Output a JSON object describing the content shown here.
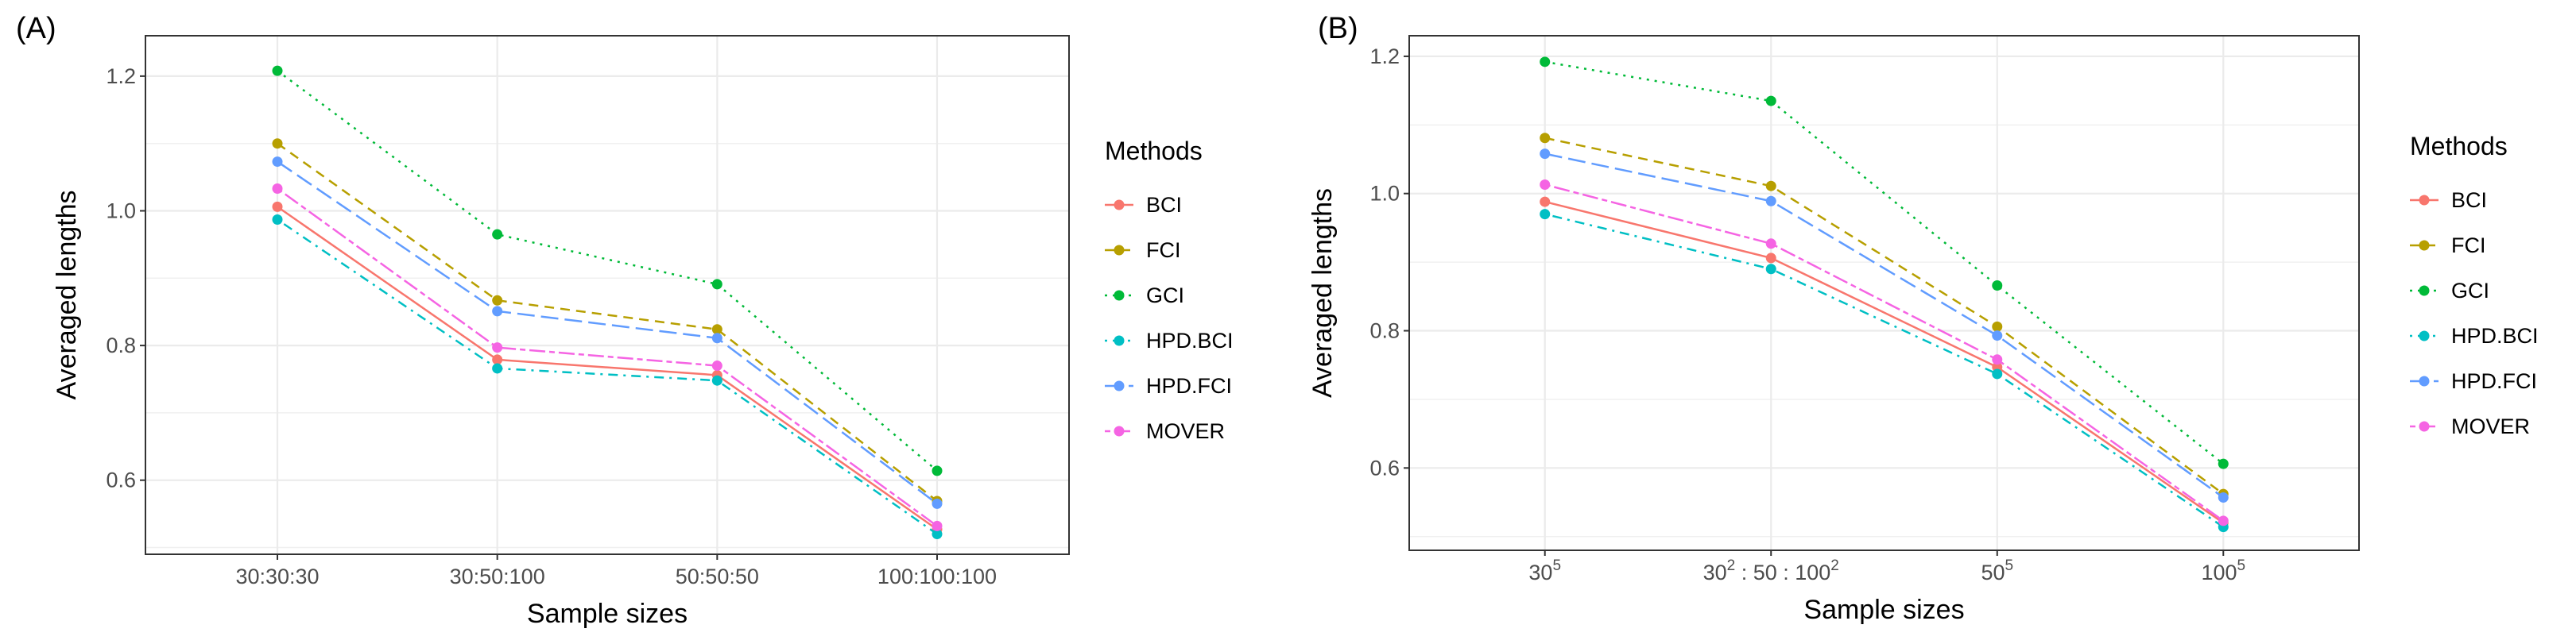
{
  "chart_data": [
    {
      "type": "line",
      "panel_label": "(A)",
      "xlabel": "Sample sizes",
      "ylabel": "Averaged lengths",
      "categories": [
        "30:30:30",
        "30:50:100",
        "50:50:50",
        "100:100:100"
      ],
      "ylim": [
        0.49,
        1.26
      ],
      "yticks": [
        0.6,
        0.8,
        1.0,
        1.2
      ],
      "ytick_labels": [
        "0.6",
        "0.8",
        "1.0",
        "1.2"
      ],
      "grid": true,
      "legend_title": "Methods",
      "legend_position": "right",
      "series": [
        {
          "name": "BCI",
          "values": [
            1.006,
            0.779,
            0.756,
            0.527
          ]
        },
        {
          "name": "FCI",
          "values": [
            1.1,
            0.867,
            0.824,
            0.569
          ]
        },
        {
          "name": "GCI",
          "values": [
            1.208,
            0.965,
            0.891,
            0.614
          ]
        },
        {
          "name": "HPD.BCI",
          "values": [
            0.987,
            0.766,
            0.748,
            0.52
          ]
        },
        {
          "name": "HPD.FCI",
          "values": [
            1.073,
            0.851,
            0.811,
            0.565
          ]
        },
        {
          "name": "MOVER",
          "values": [
            1.033,
            0.797,
            0.77,
            0.532
          ]
        }
      ]
    },
    {
      "type": "line",
      "panel_label": "(B)",
      "xlabel": "Sample sizes",
      "ylabel": "Averaged lengths",
      "categories": [
        {
          "base": "30",
          "sup": "5"
        },
        {
          "base": "30",
          "sup": "2",
          "mid": " : 50 : 100",
          "sup2": "2"
        },
        {
          "base": "50",
          "sup": "5"
        },
        {
          "base": "100",
          "sup": "5"
        }
      ],
      "ylim": [
        0.48,
        1.23
      ],
      "yticks": [
        0.6,
        0.8,
        1.0,
        1.2
      ],
      "ytick_labels": [
        "0.6",
        "0.8",
        "1.0",
        "1.2"
      ],
      "grid": true,
      "legend_title": "Methods",
      "legend_position": "right",
      "series": [
        {
          "name": "BCI",
          "values": [
            0.988,
            0.906,
            0.747,
            0.52
          ]
        },
        {
          "name": "FCI",
          "values": [
            1.081,
            1.011,
            0.806,
            0.562
          ]
        },
        {
          "name": "GCI",
          "values": [
            1.192,
            1.135,
            0.866,
            0.606
          ]
        },
        {
          "name": "HPD.BCI",
          "values": [
            0.97,
            0.89,
            0.737,
            0.514
          ]
        },
        {
          "name": "HPD.FCI",
          "values": [
            1.058,
            0.989,
            0.793,
            0.557
          ]
        },
        {
          "name": "MOVER",
          "values": [
            1.013,
            0.927,
            0.758,
            0.523
          ]
        }
      ]
    }
  ],
  "series_style": {
    "BCI": {
      "color": "#F8766D",
      "dash": "solid"
    },
    "FCI": {
      "color": "#B79F00",
      "dash": "dashed"
    },
    "GCI": {
      "color": "#00BA38",
      "dash": "dotted"
    },
    "HPD.BCI": {
      "color": "#00BFC4",
      "dash": "dotdash"
    },
    "HPD.FCI": {
      "color": "#619CFF",
      "dash": "longdash"
    },
    "MOVER": {
      "color": "#F564E3",
      "dash": "twodash"
    }
  }
}
